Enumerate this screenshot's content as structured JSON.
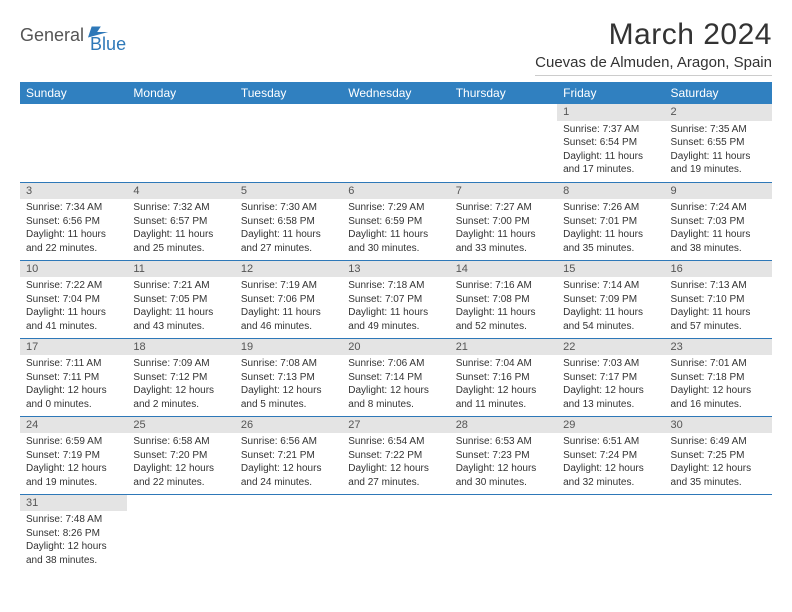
{
  "logo": {
    "part1": "General",
    "part2": "Blue",
    "mark_color": "#2e78b8"
  },
  "title": "March 2024",
  "location": "Cuevas de Almuden, Aragon, Spain",
  "colors": {
    "header_bg": "#3080c0",
    "header_text": "#ffffff",
    "daynum_bg": "#e4e4e4",
    "cell_border": "#2e78b8",
    "body_text": "#333333"
  },
  "weekdays": [
    "Sunday",
    "Monday",
    "Tuesday",
    "Wednesday",
    "Thursday",
    "Friday",
    "Saturday"
  ],
  "weeks": [
    [
      null,
      null,
      null,
      null,
      null,
      {
        "n": "1",
        "sr": "7:37 AM",
        "ss": "6:54 PM",
        "dl": "11 hours and 17 minutes."
      },
      {
        "n": "2",
        "sr": "7:35 AM",
        "ss": "6:55 PM",
        "dl": "11 hours and 19 minutes."
      }
    ],
    [
      {
        "n": "3",
        "sr": "7:34 AM",
        "ss": "6:56 PM",
        "dl": "11 hours and 22 minutes."
      },
      {
        "n": "4",
        "sr": "7:32 AM",
        "ss": "6:57 PM",
        "dl": "11 hours and 25 minutes."
      },
      {
        "n": "5",
        "sr": "7:30 AM",
        "ss": "6:58 PM",
        "dl": "11 hours and 27 minutes."
      },
      {
        "n": "6",
        "sr": "7:29 AM",
        "ss": "6:59 PM",
        "dl": "11 hours and 30 minutes."
      },
      {
        "n": "7",
        "sr": "7:27 AM",
        "ss": "7:00 PM",
        "dl": "11 hours and 33 minutes."
      },
      {
        "n": "8",
        "sr": "7:26 AM",
        "ss": "7:01 PM",
        "dl": "11 hours and 35 minutes."
      },
      {
        "n": "9",
        "sr": "7:24 AM",
        "ss": "7:03 PM",
        "dl": "11 hours and 38 minutes."
      }
    ],
    [
      {
        "n": "10",
        "sr": "7:22 AM",
        "ss": "7:04 PM",
        "dl": "11 hours and 41 minutes."
      },
      {
        "n": "11",
        "sr": "7:21 AM",
        "ss": "7:05 PM",
        "dl": "11 hours and 43 minutes."
      },
      {
        "n": "12",
        "sr": "7:19 AM",
        "ss": "7:06 PM",
        "dl": "11 hours and 46 minutes."
      },
      {
        "n": "13",
        "sr": "7:18 AM",
        "ss": "7:07 PM",
        "dl": "11 hours and 49 minutes."
      },
      {
        "n": "14",
        "sr": "7:16 AM",
        "ss": "7:08 PM",
        "dl": "11 hours and 52 minutes."
      },
      {
        "n": "15",
        "sr": "7:14 AM",
        "ss": "7:09 PM",
        "dl": "11 hours and 54 minutes."
      },
      {
        "n": "16",
        "sr": "7:13 AM",
        "ss": "7:10 PM",
        "dl": "11 hours and 57 minutes."
      }
    ],
    [
      {
        "n": "17",
        "sr": "7:11 AM",
        "ss": "7:11 PM",
        "dl": "12 hours and 0 minutes."
      },
      {
        "n": "18",
        "sr": "7:09 AM",
        "ss": "7:12 PM",
        "dl": "12 hours and 2 minutes."
      },
      {
        "n": "19",
        "sr": "7:08 AM",
        "ss": "7:13 PM",
        "dl": "12 hours and 5 minutes."
      },
      {
        "n": "20",
        "sr": "7:06 AM",
        "ss": "7:14 PM",
        "dl": "12 hours and 8 minutes."
      },
      {
        "n": "21",
        "sr": "7:04 AM",
        "ss": "7:16 PM",
        "dl": "12 hours and 11 minutes."
      },
      {
        "n": "22",
        "sr": "7:03 AM",
        "ss": "7:17 PM",
        "dl": "12 hours and 13 minutes."
      },
      {
        "n": "23",
        "sr": "7:01 AM",
        "ss": "7:18 PM",
        "dl": "12 hours and 16 minutes."
      }
    ],
    [
      {
        "n": "24",
        "sr": "6:59 AM",
        "ss": "7:19 PM",
        "dl": "12 hours and 19 minutes."
      },
      {
        "n": "25",
        "sr": "6:58 AM",
        "ss": "7:20 PM",
        "dl": "12 hours and 22 minutes."
      },
      {
        "n": "26",
        "sr": "6:56 AM",
        "ss": "7:21 PM",
        "dl": "12 hours and 24 minutes."
      },
      {
        "n": "27",
        "sr": "6:54 AM",
        "ss": "7:22 PM",
        "dl": "12 hours and 27 minutes."
      },
      {
        "n": "28",
        "sr": "6:53 AM",
        "ss": "7:23 PM",
        "dl": "12 hours and 30 minutes."
      },
      {
        "n": "29",
        "sr": "6:51 AM",
        "ss": "7:24 PM",
        "dl": "12 hours and 32 minutes."
      },
      {
        "n": "30",
        "sr": "6:49 AM",
        "ss": "7:25 PM",
        "dl": "12 hours and 35 minutes."
      }
    ],
    [
      {
        "n": "31",
        "sr": "7:48 AM",
        "ss": "8:26 PM",
        "dl": "12 hours and 38 minutes."
      },
      null,
      null,
      null,
      null,
      null,
      null
    ]
  ],
  "labels": {
    "sunrise": "Sunrise:",
    "sunset": "Sunset:",
    "daylight": "Daylight:"
  }
}
